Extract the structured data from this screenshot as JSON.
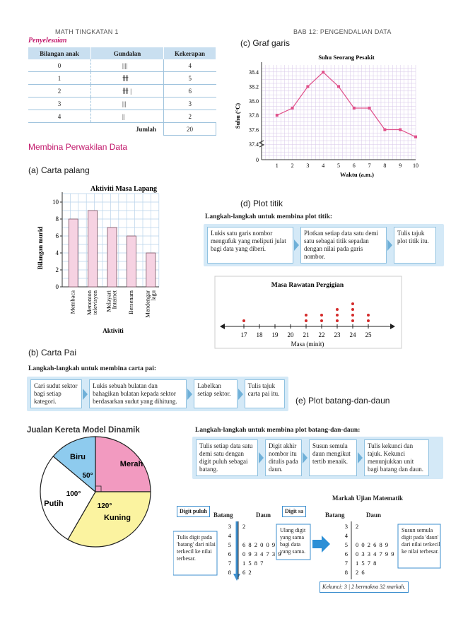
{
  "header": {
    "left": "MATH TINGKATAN 1",
    "right": "BAB 12: PENGENDALIAN DATA"
  },
  "penyelesaian": "Penyelesaian",
  "freq_table": {
    "headers": [
      "Bilangan anak",
      "Gundalan",
      "Kekerapan"
    ],
    "rows": [
      {
        "anak": "0",
        "tally": "||||",
        "freq": "4"
      },
      {
        "anak": "1",
        "tally": "卌",
        "freq": "5"
      },
      {
        "anak": "2",
        "tally": "卌 |",
        "freq": "6"
      },
      {
        "anak": "3",
        "tally": "|||",
        "freq": "3"
      },
      {
        "anak": "4",
        "tally": "||",
        "freq": "2"
      }
    ],
    "total_label": "Jumlah",
    "total_value": "20"
  },
  "section_title": "Membina Perwakilan Data",
  "sub_a": "(a) Carta palang",
  "sub_b": "(b) Carta Pai",
  "sub_c": "(c) Graf garis",
  "sub_d": "(d) Plot titik",
  "sub_e": "(e) Plot batang-dan-daun",
  "bar_chart": {
    "title": "Aktiviti Masa Lapang",
    "ylabel": "Bilangan murid",
    "xlabel": "Aktiviti",
    "categories": [
      "Membaca",
      "Menonton televisyen",
      "Melayari Internet",
      "Bersenam",
      "Mendengar lagu"
    ],
    "values": [
      8,
      9,
      7,
      6,
      4
    ],
    "yticks": [
      "0",
      "2",
      "4",
      "6",
      "8",
      "10"
    ],
    "bar_color": "#f6d2e2"
  },
  "line_chart": {
    "title": "Suhu Seorang Pesakit",
    "ylabel": "Suhu (°C)",
    "xlabel": "Waktu (a.m.)",
    "x": [
      1,
      2,
      3,
      4,
      5,
      6,
      7,
      8,
      9,
      10
    ],
    "y": [
      37.8,
      37.9,
      38.2,
      38.4,
      38.2,
      37.9,
      37.9,
      37.6,
      37.6,
      37.5
    ],
    "yticks": [
      "0",
      "37.4",
      "37.6",
      "37.8",
      "38.0",
      "38.2",
      "38.4"
    ],
    "xticks": [
      "1",
      "2",
      "3",
      "4",
      "5",
      "6",
      "7",
      "8",
      "9",
      "10"
    ],
    "line_color": "#e0508a"
  },
  "dot_plot": {
    "steps_title": "Langkah-langkah untuk membina plot titik:",
    "steps": [
      "Lukis satu garis nombor mengufuk yang meliputi julat bagi data yang diberi.",
      "Plotkan setiap data satu demi satu sebagai titik sepadan dengan nilai pada garis nombor.",
      "Tulis tajuk plot titik itu."
    ],
    "title": "Masa Rawatan Pergigian",
    "xlabel": "Masa (minit)",
    "ticks": [
      "17",
      "18",
      "19",
      "20",
      "21",
      "22",
      "23",
      "24",
      "25"
    ],
    "counts": [
      1,
      0,
      0,
      0,
      2,
      2,
      3,
      4,
      2
    ],
    "dot_color": "#d42a2a"
  },
  "pie": {
    "steps_title": "Langkah-langkah untuk membina carta pai:",
    "steps": [
      "Cari sudut sektor bagi setiap kategori.",
      "Lukis sebuah bulatan dan bahagikan bulatan kepada sektor berdasarkan sudut yang dihitung.",
      "Labelkan setiap sektor.",
      "Tulis tajuk carta pai itu."
    ],
    "title": "Jualan Kereta Model Dinamik",
    "slices": [
      {
        "name": "Merah",
        "angle": 90,
        "color": "#f29ac0"
      },
      {
        "name": "Kuning",
        "angle": 120,
        "color": "#fbf3a0"
      },
      {
        "name": "Putih",
        "angle": 100,
        "color": "#ffffff"
      },
      {
        "name": "Biru",
        "angle": 50,
        "color": "#8ecbee"
      }
    ],
    "angle_labels": [
      "50°",
      "100°",
      "120°"
    ]
  },
  "stem_leaf": {
    "steps_title": "Langkah-langkah untuk membina plot batang-dan-daun:",
    "steps": [
      "Tulis setiap data satu demi satu dengan digit puluh sebagai batang.",
      "Digit akhir nombor itu ditulis pada daun.",
      "Susun semula daun mengikut tertib menaik.",
      "Tulis kekunci dan tajuk. Kekunci menunjukkan unit bagi batang dan daun."
    ],
    "title": "Markah Ujian Matematik",
    "stem_label": "Batang",
    "leaf_label": "Daun",
    "callout_digit_puluh": "Digit puluh",
    "callout_digit_sa": "Digit sa",
    "callout_left": "Tulis digit pada 'batang' dari nilai terkecil ke nilai terbesar.",
    "callout_mid": "Ulang digit yang sama bagi data yang sama.",
    "callout_right": "Susun semula digit pada 'daun' dari nilai terkecil ke nilai terbesar.",
    "stems": [
      "3",
      "4",
      "5",
      "6",
      "7",
      "8"
    ],
    "leaves_unsorted": [
      "2",
      "",
      "6 8 2 0 0 9",
      "0 9 3 4 7 3 9",
      "1 5 8 7",
      "6 2"
    ],
    "leaves_sorted": [
      "2",
      "",
      "0 0 2 6 8 9",
      "0 3 3 4 7 9 9",
      "1 5 7 8",
      "2 6"
    ],
    "key": "Kekunci: 3 | 2 bermakna 32 markah."
  }
}
